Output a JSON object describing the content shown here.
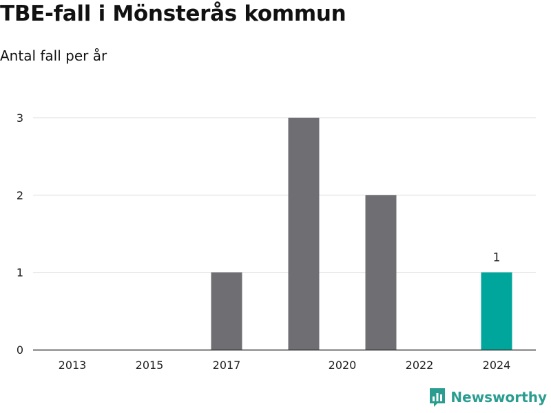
{
  "chart_data": {
    "type": "bar",
    "title": "TBE-fall i Mönsterås kommun",
    "subtitle": "Antal fall per år",
    "xlabel": "",
    "ylabel": "",
    "categories": [
      "2013",
      "2014",
      "2015",
      "2016",
      "2017",
      "2018",
      "2019",
      "2020",
      "2021",
      "2022",
      "2023",
      "2024"
    ],
    "values": [
      0,
      0,
      0,
      0,
      1,
      0,
      3,
      0,
      2,
      0,
      0,
      1
    ],
    "x_tick_labels": [
      "2013",
      "2015",
      "2017",
      "2020",
      "2022",
      "2024"
    ],
    "y_ticks": [
      0,
      1,
      2,
      3
    ],
    "ylim": [
      0,
      3
    ],
    "grid": true,
    "bar_color": "#6f6e73",
    "highlight_color": "#00a69c",
    "highlight_category": "2024",
    "data_labels": [
      {
        "category": "2024",
        "text": "1"
      }
    ]
  },
  "brand": {
    "name": "Newsworthy",
    "color": "#2a9d90",
    "icon": "newsworthy-logo-icon"
  }
}
